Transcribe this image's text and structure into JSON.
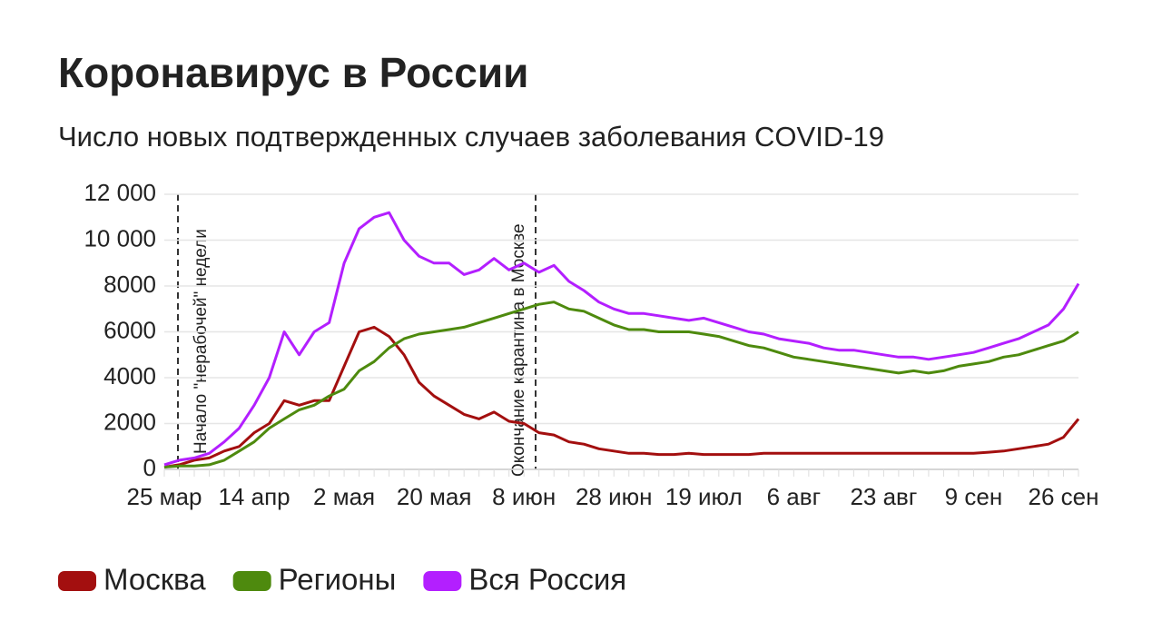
{
  "chart_data": {
    "type": "line",
    "title": "Коронавирус в России",
    "subtitle": "Число новых подтвержденных случаев заболевания COVID-19",
    "annotations": [
      "Начало \"нерабочей\" недели",
      "Окончание карантина в Москве"
    ],
    "categories": [
      "25 мар",
      null,
      null,
      null,
      null,
      null,
      "14 апр",
      null,
      null,
      null,
      null,
      null,
      "2 мая",
      null,
      null,
      null,
      null,
      null,
      "20 мая",
      null,
      null,
      null,
      null,
      null,
      "8 июн",
      null,
      null,
      null,
      null,
      null,
      "28 июн",
      null,
      null,
      null,
      null,
      null,
      "19 июл",
      null,
      null,
      null,
      null,
      null,
      "6 авг",
      null,
      null,
      null,
      null,
      null,
      "23 авг",
      null,
      null,
      null,
      null,
      null,
      "9 сен",
      null,
      null,
      null,
      null,
      null,
      "26 сен",
      null
    ],
    "series": [
      {
        "name": "Москва",
        "color": "#a30f0f",
        "values": [
          100,
          200,
          400,
          500,
          800,
          1000,
          1600,
          2000,
          3000,
          2800,
          3000,
          3000,
          4500,
          6000,
          6200,
          5800,
          5000,
          3800,
          3200,
          2800,
          2400,
          2200,
          2500,
          2100,
          2000,
          1600,
          1500,
          1200,
          1100,
          900,
          800,
          700,
          700,
          650,
          650,
          700,
          650,
          650,
          650,
          650,
          700,
          700,
          700,
          700,
          700,
          700,
          700,
          700,
          700,
          700,
          700,
          700,
          700,
          700,
          700,
          750,
          800,
          900,
          1000,
          1100,
          1400,
          2200
        ]
      },
      {
        "name": "Регионы",
        "color": "#4e8a0e",
        "values": [
          100,
          150,
          150,
          200,
          400,
          800,
          1200,
          1800,
          2200,
          2600,
          2800,
          3200,
          3500,
          4300,
          4700,
          5300,
          5700,
          5900,
          6000,
          6100,
          6200,
          6400,
          6600,
          6800,
          7000,
          7200,
          7300,
          7000,
          6900,
          6600,
          6300,
          6100,
          6100,
          6000,
          6000,
          6000,
          5900,
          5800,
          5600,
          5400,
          5300,
          5100,
          4900,
          4800,
          4700,
          4600,
          4500,
          4400,
          4300,
          4200,
          4300,
          4200,
          4300,
          4500,
          4600,
          4700,
          4900,
          5000,
          5200,
          5400,
          5600,
          6000
        ]
      },
      {
        "name": "Вся Россия",
        "color": "#b31fff",
        "values": [
          200,
          400,
          500,
          700,
          1200,
          1800,
          2800,
          4000,
          6000,
          5000,
          6000,
          6400,
          9000,
          10500,
          11000,
          11200,
          10000,
          9300,
          9000,
          9000,
          8500,
          8700,
          9200,
          8700,
          9000,
          8600,
          8900,
          8200,
          7800,
          7300,
          7000,
          6800,
          6800,
          6700,
          6600,
          6500,
          6600,
          6400,
          6200,
          6000,
          5900,
          5700,
          5600,
          5500,
          5300,
          5200,
          5200,
          5100,
          5000,
          4900,
          4900,
          4800,
          4900,
          5000,
          5100,
          5300,
          5500,
          5700,
          6000,
          6300,
          7000,
          8100
        ]
      }
    ],
    "ylim": [
      0,
      12000
    ],
    "yticks": [
      0,
      2000,
      4000,
      6000,
      8000,
      {
        "value": 10000,
        "label": "10 000"
      },
      {
        "value": 12000,
        "label": "12 000"
      }
    ],
    "grid": true
  }
}
